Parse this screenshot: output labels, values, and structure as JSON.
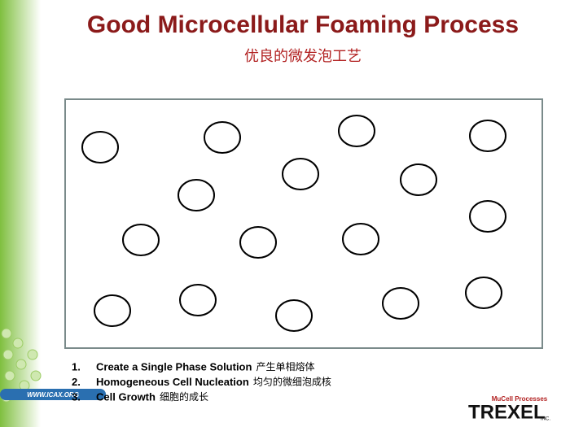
{
  "header": {
    "title": "Good Microcellular Foaming Process",
    "subtitle": "优良的微发泡工艺"
  },
  "list": [
    {
      "number": "1.",
      "text": "Create a Single Phase Solution",
      "note": "产生单相熔体"
    },
    {
      "number": "2.",
      "text": "Homogeneous Cell Nucleation",
      "note": "均匀的微细泡成核"
    },
    {
      "number": "3.",
      "text": "Cell Growth",
      "note": "细胞的成长"
    }
  ],
  "logo": {
    "tagline": "MuCell Processes",
    "name": "TREXEL",
    "suffix": "INC."
  },
  "watermark": {
    "site": "WWW.ICAX.ORG"
  }
}
